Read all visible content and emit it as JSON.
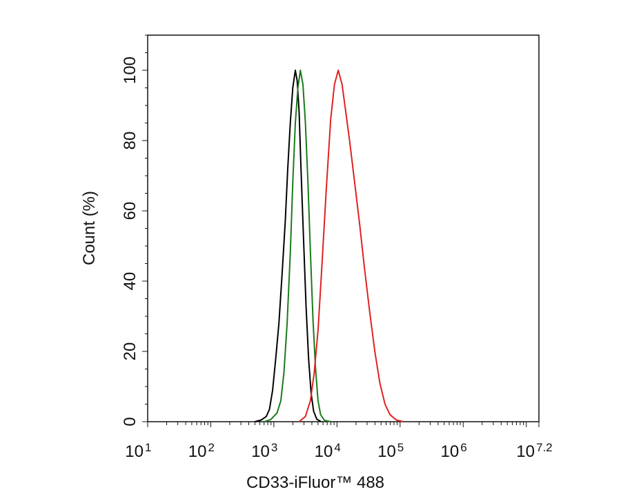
{
  "chart_data": {
    "type": "line",
    "xlabel": "CD33-iFluor™ 488",
    "ylabel": "Count  (%)",
    "x_scale": "log10",
    "xlim_log10": [
      1,
      7.2
    ],
    "ylim": [
      0,
      110
    ],
    "x_ticks": [
      {
        "base": "10",
        "exp": "1"
      },
      {
        "base": "10",
        "exp": "2"
      },
      {
        "base": "10",
        "exp": "3"
      },
      {
        "base": "10",
        "exp": "4"
      },
      {
        "base": "10",
        "exp": "5"
      },
      {
        "base": "10",
        "exp": "6"
      },
      {
        "base": "10",
        "exp": "7.2"
      }
    ],
    "y_ticks": [
      "0",
      "20",
      "40",
      "60",
      "80",
      "100"
    ],
    "series": [
      {
        "color": "#000000",
        "points_log10x": [
          [
            2.7,
            0
          ],
          [
            2.8,
            0.5
          ],
          [
            2.88,
            1.5
          ],
          [
            2.93,
            3.5
          ],
          [
            2.98,
            9
          ],
          [
            3.03,
            18
          ],
          [
            3.08,
            28
          ],
          [
            3.13,
            42
          ],
          [
            3.18,
            57
          ],
          [
            3.22,
            72
          ],
          [
            3.26,
            85
          ],
          [
            3.3,
            95
          ],
          [
            3.34,
            100
          ],
          [
            3.37,
            97
          ],
          [
            3.4,
            88
          ],
          [
            3.43,
            72
          ],
          [
            3.47,
            52
          ],
          [
            3.51,
            33
          ],
          [
            3.55,
            18
          ],
          [
            3.59,
            8
          ],
          [
            3.63,
            3
          ],
          [
            3.68,
            0.7
          ],
          [
            3.75,
            0
          ]
        ]
      },
      {
        "color": "#1a7a1a",
        "points_log10x": [
          [
            2.85,
            0
          ],
          [
            2.95,
            0.6
          ],
          [
            3.05,
            2.5
          ],
          [
            3.11,
            6
          ],
          [
            3.16,
            14
          ],
          [
            3.21,
            28
          ],
          [
            3.26,
            48
          ],
          [
            3.3,
            68
          ],
          [
            3.34,
            85
          ],
          [
            3.38,
            95
          ],
          [
            3.42,
            100
          ],
          [
            3.46,
            96
          ],
          [
            3.5,
            85
          ],
          [
            3.54,
            68
          ],
          [
            3.58,
            48
          ],
          [
            3.62,
            29
          ],
          [
            3.66,
            15
          ],
          [
            3.7,
            6
          ],
          [
            3.74,
            2
          ],
          [
            3.8,
            0.4
          ],
          [
            3.9,
            0
          ]
        ]
      },
      {
        "color": "#e02020",
        "points_log10x": [
          [
            3.4,
            0
          ],
          [
            3.5,
            1.5
          ],
          [
            3.58,
            6
          ],
          [
            3.64,
            14
          ],
          [
            3.7,
            26
          ],
          [
            3.76,
            44
          ],
          [
            3.83,
            66
          ],
          [
            3.9,
            86
          ],
          [
            3.96,
            96
          ],
          [
            4.02,
            100
          ],
          [
            4.08,
            96
          ],
          [
            4.14,
            88
          ],
          [
            4.2,
            80
          ],
          [
            4.28,
            68
          ],
          [
            4.36,
            56
          ],
          [
            4.44,
            43
          ],
          [
            4.52,
            31
          ],
          [
            4.6,
            20
          ],
          [
            4.68,
            11
          ],
          [
            4.76,
            5
          ],
          [
            4.84,
            2
          ],
          [
            4.94,
            0.5
          ],
          [
            5.05,
            0
          ]
        ]
      }
    ]
  }
}
